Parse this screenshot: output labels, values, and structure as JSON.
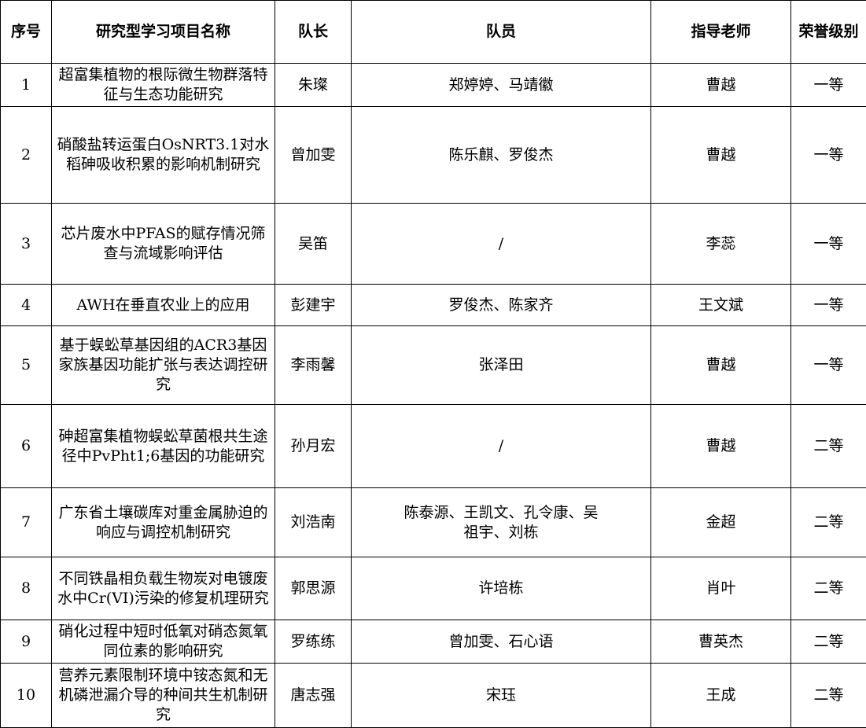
{
  "headers": [
    "序号",
    "研究型学习项目名称",
    "队长",
    "队员",
    "指导老师",
    "荣誉级别"
  ],
  "rows": [
    {
      "no": "1",
      "project": "超富集植物的根际微生物群落特征与生态功能研究",
      "leader": "朱璨",
      "members": "郑婷婷、马靖徽",
      "advisor": "曹越",
      "level": "一等"
    },
    {
      "no": "2",
      "project": "硝酸盐转运蛋白OsNRT3.1对水稻砷吸收积累的影响机制研究",
      "leader": "曾加雯",
      "members": "陈乐麒、罗俊杰",
      "advisor": "曹越",
      "level": "一等"
    },
    {
      "no": "3",
      "project": "芯片废水中PFAS的赋存情况筛查与流域影响评估",
      "leader": "吴笛",
      "members": "/",
      "advisor": "李蕊",
      "level": "一等"
    },
    {
      "no": "4",
      "project": "AWH在垂直农业上的应用",
      "leader": "彭建宇",
      "members": "罗俊杰、陈家齐",
      "advisor": "王文斌",
      "level": "一等"
    },
    {
      "no": "5",
      "project": "基于蜈蚣草基因组的ACR3基因家族基因功能扩张与表达调控研究",
      "leader": "李雨馨",
      "members": "张泽田",
      "advisor": "曹越",
      "level": "一等"
    },
    {
      "no": "6",
      "project": "砷超富集植物蜈蚣草菌根共生途径中PvPht1;6基因的功能研究",
      "leader": "孙月宏",
      "members": "/",
      "advisor": "曹越",
      "level": "二等"
    },
    {
      "no": "7",
      "project": "广东省土壤碳库对重金属胁迫的响应与调控机制研究",
      "leader": "刘浩南",
      "members": "陈泰源、王凯文、孔令康、吴祖宇、刘栋",
      "advisor": "金超",
      "level": "二等"
    },
    {
      "no": "8",
      "project": "不同铁晶相负载生物炭对电镀废水中Cr(VI)污染的修复机理研究",
      "leader": "郭思源",
      "members": "许培栋",
      "advisor": "肖叶",
      "level": "二等"
    },
    {
      "no": "9",
      "project": "硝化过程中短时低氧对硝态氮氧同位素的影响研究",
      "leader": "罗练练",
      "members": "曾加雯、石心语",
      "advisor": "曹英杰",
      "level": "二等"
    },
    {
      "no": "10",
      "project": "营养元素限制环境中铵态氮和无机磷泄漏介导的种间共生机制研究",
      "leader": "唐志强",
      "members": "宋珏",
      "advisor": "王成",
      "level": "二等"
    }
  ]
}
